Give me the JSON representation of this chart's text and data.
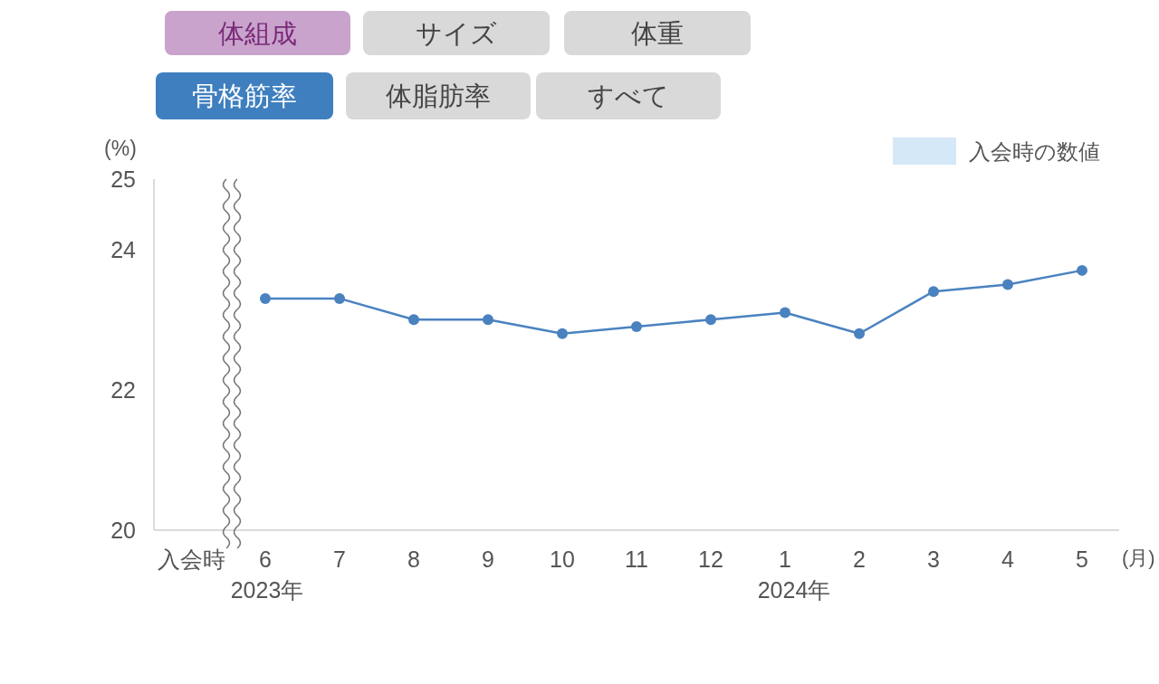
{
  "chart_data": {
    "type": "line",
    "categories": [
      "入会時",
      "6",
      "7",
      "8",
      "9",
      "10",
      "11",
      "12",
      "1",
      "2",
      "3",
      "4",
      "5"
    ],
    "series": [
      {
        "name": "入会時の数値",
        "type": "bar",
        "color": "#d4e8f8",
        "values": [
          null,
          null,
          null,
          null,
          null,
          null,
          null,
          null,
          null,
          null,
          null,
          null,
          null
        ]
      },
      {
        "color": "#4a82c0",
        "values": [
          null,
          23.3,
          23.3,
          23.0,
          23.0,
          22.8,
          22.9,
          23.0,
          23.1,
          22.8,
          23.4,
          23.5,
          23.7
        ]
      }
    ],
    "ylim": [
      20,
      25
    ],
    "yticks": [
      20,
      22,
      24,
      25
    ],
    "ylabel": "(%)",
    "xlabel": "(月)",
    "annotations": [
      "体組成",
      "サイズ",
      "体重",
      "骨格筋率",
      "体脂肪率",
      "すべて",
      "2023年",
      "2024年"
    ],
    "legend": "top right",
    "marker": "circle",
    "grid": false
  }
}
